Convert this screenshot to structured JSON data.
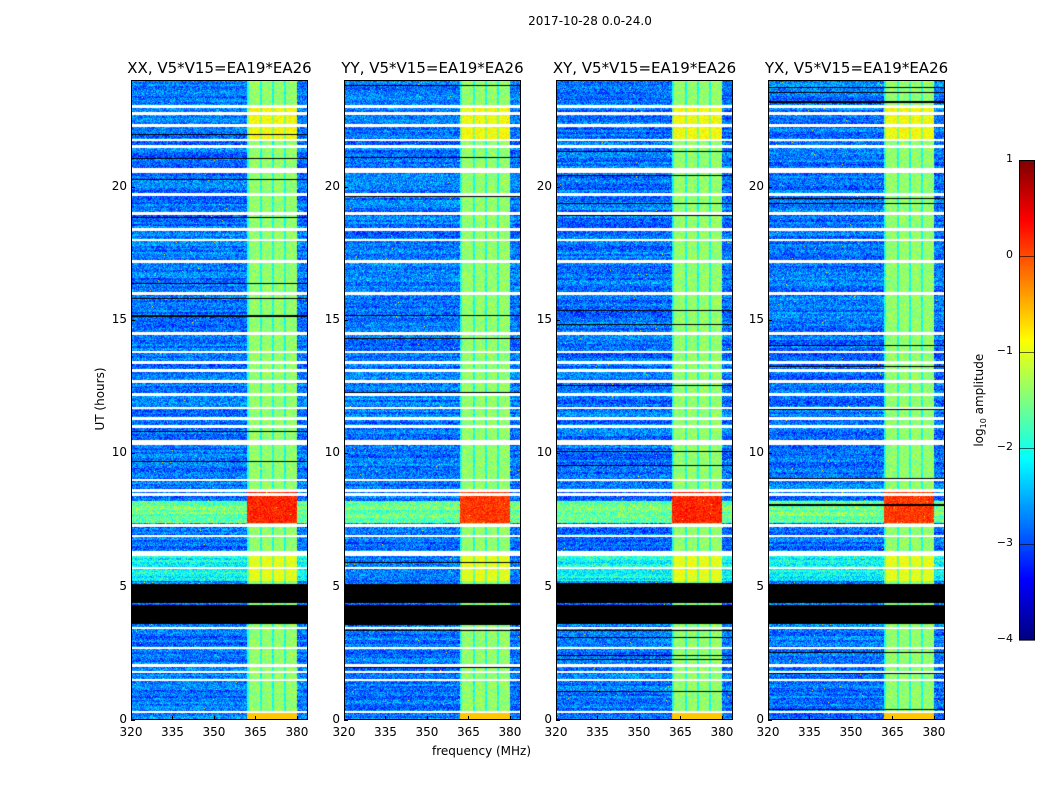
{
  "suptitle": "2017-10-28 0.0-24.0",
  "xlabel": "frequency (MHz)",
  "ylabel": "UT (hours)",
  "colorbar_label": "log10 amplitude",
  "chart_data": {
    "type": "heatmap",
    "title": "2017-10-28 0.0-24.0",
    "panels": [
      {
        "title": "XX, V5*V15=EA19*EA26"
      },
      {
        "title": "YY, V5*V15=EA19*EA26"
      },
      {
        "title": "XY, V5*V15=EA19*EA26"
      },
      {
        "title": "YX, V5*V15=EA19*EA26"
      }
    ],
    "xlabel": "frequency (MHz)",
    "ylabel": "UT (hours)",
    "xlim": [
      320,
      384
    ],
    "ylim": [
      0,
      24
    ],
    "xticks": [
      "320",
      "335",
      "350",
      "365",
      "380"
    ],
    "xtick_values": [
      320,
      335,
      350,
      365,
      380
    ],
    "yticks": [
      "0",
      "5",
      "10",
      "15",
      "20"
    ],
    "ytick_values": [
      0,
      5,
      10,
      15,
      20
    ],
    "colormap": "jet",
    "colorbar": {
      "label": "log10 amplitude",
      "range": [
        -4,
        1
      ],
      "ticks": [
        "1",
        "0",
        "−1",
        "−2",
        "−3",
        "−4"
      ],
      "tick_values": [
        1,
        0,
        -1,
        -2,
        -3,
        -4
      ]
    },
    "background_level": -2.8,
    "rfi_band_mhz": [
      362,
      380
    ],
    "rfi_level": -1.4,
    "strong_rfi_hours": [
      7.4,
      8.6
    ],
    "strong_rfi_level": 0.2,
    "no_data_hours": [
      3.6,
      5.1
    ],
    "flagged_hours": [
      0.3,
      1.5,
      1.8,
      2.05,
      2.7,
      3.45,
      5.7,
      6.2,
      6.3,
      6.9,
      7.3,
      8.45,
      8.6,
      9.0,
      10.35,
      10.45,
      11.0,
      11.3,
      11.7,
      12.2,
      12.7,
      13.1,
      13.4,
      13.8,
      14.5,
      16.0,
      17.2,
      18.0,
      18.4,
      19.0,
      19.7,
      20.55,
      20.65,
      21.5,
      21.75,
      22.3,
      22.75,
      23.0
    ]
  }
}
